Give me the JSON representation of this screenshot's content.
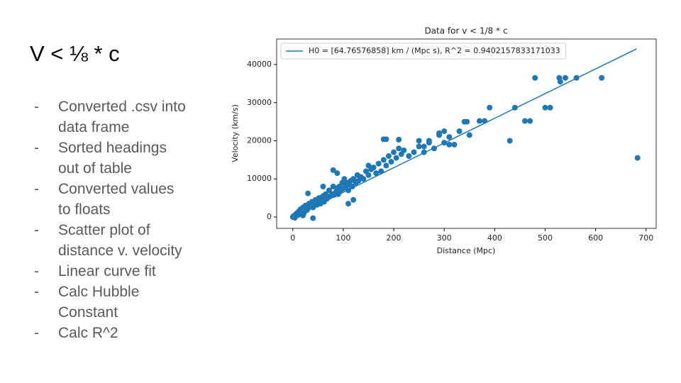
{
  "slide": {
    "title": "V < ⅛ * c",
    "bullets": [
      [
        "Converted .csv into",
        "data frame"
      ],
      [
        "Sorted headings",
        "out of table"
      ],
      [
        "Converted values",
        "to floats"
      ],
      [
        "Scatter plot of",
        "distance v. velocity"
      ],
      [
        "Linear curve fit"
      ],
      [
        "Calc Hubble",
        "Constant"
      ],
      [
        "Calc R^2"
      ]
    ],
    "bullet_marker": "-"
  },
  "chart_data": {
    "type": "scatter",
    "title": "Data for v < 1/8 * c",
    "x_label": "Distance (Mpc)",
    "y_label": "Velocity (km/s)",
    "xlim": [
      -32,
      720
    ],
    "ylim": [
      -2980,
      46700
    ],
    "xticks": [
      0,
      100,
      200,
      300,
      400,
      500,
      600,
      700
    ],
    "yticks": [
      0,
      10000,
      20000,
      30000,
      40000
    ],
    "legend": "upper left",
    "series": [
      {
        "type": "scatter",
        "color": "#1f77b4",
        "x": [
          0,
          2,
          4,
          5,
          8,
          10,
          12,
          14,
          15,
          18,
          20,
          22,
          25,
          28,
          30,
          32,
          35,
          38,
          40,
          42,
          45,
          48,
          50,
          52,
          55,
          58,
          60,
          62,
          65,
          68,
          70,
          72,
          75,
          78,
          80,
          82,
          85,
          88,
          90,
          92,
          95,
          98,
          100,
          102,
          105,
          108,
          110,
          112,
          115,
          118,
          120,
          125,
          128,
          130,
          135,
          140,
          145,
          150,
          155,
          160,
          165,
          170,
          175,
          180,
          185,
          190,
          195,
          200,
          205,
          210,
          215,
          220,
          230,
          240,
          250,
          260,
          270,
          280,
          290,
          300,
          310,
          320,
          30,
          60,
          80,
          88,
          120,
          110,
          20,
          40,
          683,
          612,
          562,
          540,
          530,
          528,
          480,
          500,
          510,
          440,
          430,
          460,
          470,
          390,
          380,
          370,
          330,
          340,
          345,
          350,
          310,
          300,
          290,
          270,
          260,
          250,
          210,
          180,
          185,
          150
        ],
        "values": [
          0,
          300,
          -200,
          600,
          1000,
          500,
          1500,
          800,
          2000,
          1200,
          2500,
          1000,
          3000,
          1800,
          2200,
          3500,
          2800,
          4000,
          2500,
          3000,
          4500,
          3200,
          3800,
          5000,
          3500,
          4500,
          5500,
          4000,
          6000,
          4800,
          5200,
          7000,
          5500,
          6000,
          8000,
          5800,
          6500,
          7500,
          6000,
          8000,
          7000,
          9000,
          7500,
          10000,
          8000,
          9000,
          7000,
          8500,
          9500,
          8000,
          10000,
          9000,
          11000,
          9500,
          10500,
          10000,
          12000,
          11000,
          12500,
          13000,
          11500,
          14000,
          12000,
          15000,
          13500,
          16000,
          14500,
          17000,
          15500,
          18000,
          16500,
          17500,
          16000,
          17000,
          18500,
          17000,
          19500,
          18000,
          21500,
          19500,
          21000,
          19000,
          6200,
          8000,
          12300,
          11500,
          4500,
          3500,
          400,
          -300,
          15500,
          36500,
          36500,
          36500,
          35500,
          36500,
          36500,
          28700,
          28700,
          28700,
          20000,
          25200,
          25200,
          28700,
          25200,
          25200,
          22500,
          25000,
          25000,
          21500,
          19000,
          22500,
          22000,
          20000,
          18500,
          20000,
          20300,
          20400,
          20400,
          13500
        ]
      },
      {
        "type": "line",
        "name": "H0 = [64.76576858] km / (Mpc s), R^2 = 0.9402157833171033",
        "color": "#1f77b4",
        "x": [
          0,
          681
        ],
        "values": [
          0,
          44100
        ]
      }
    ]
  }
}
